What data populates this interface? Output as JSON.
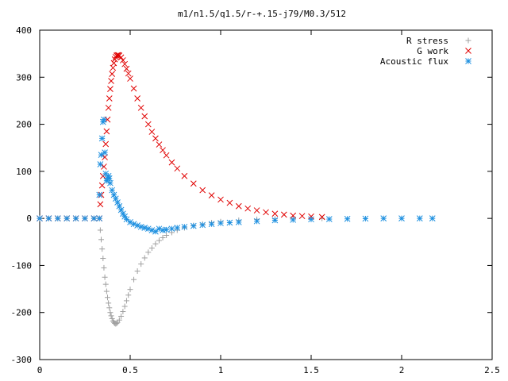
{
  "chart_data": {
    "type": "scatter",
    "title": "m1/n1.5/q1.5/r-+.15-j79/M0.3/512",
    "xlabel": "",
    "ylabel": "",
    "xlim": [
      0,
      2.5
    ],
    "ylim": [
      -300,
      400
    ],
    "xticks": [
      "0",
      "0.5",
      "1",
      "1.5",
      "2",
      "2.5"
    ],
    "yticks": [
      "400",
      "300",
      "200",
      "100",
      "0",
      "-100",
      "-200",
      "-300"
    ],
    "grid": false,
    "legend_position": "top-right",
    "series": [
      {
        "name": "R stress",
        "marker": "plus",
        "color": "#a0a0a0",
        "points": [
          [
            0.0,
            0
          ],
          [
            0.05,
            0
          ],
          [
            0.1,
            0
          ],
          [
            0.15,
            0
          ],
          [
            0.2,
            0
          ],
          [
            0.25,
            0
          ],
          [
            0.3,
            0
          ],
          [
            0.33,
            0
          ],
          [
            0.335,
            -25
          ],
          [
            0.34,
            -45
          ],
          [
            0.345,
            -65
          ],
          [
            0.35,
            -85
          ],
          [
            0.355,
            -105
          ],
          [
            0.36,
            -125
          ],
          [
            0.365,
            -140
          ],
          [
            0.37,
            -155
          ],
          [
            0.375,
            -168
          ],
          [
            0.38,
            -180
          ],
          [
            0.385,
            -190
          ],
          [
            0.39,
            -200
          ],
          [
            0.395,
            -207
          ],
          [
            0.4,
            -213
          ],
          [
            0.405,
            -218
          ],
          [
            0.41,
            -221
          ],
          [
            0.415,
            -223
          ],
          [
            0.42,
            -224
          ],
          [
            0.425,
            -223
          ],
          [
            0.43,
            -221
          ],
          [
            0.44,
            -216
          ],
          [
            0.45,
            -208
          ],
          [
            0.46,
            -198
          ],
          [
            0.47,
            -187
          ],
          [
            0.48,
            -175
          ],
          [
            0.49,
            -163
          ],
          [
            0.5,
            -151
          ],
          [
            0.52,
            -130
          ],
          [
            0.54,
            -112
          ],
          [
            0.56,
            -97
          ],
          [
            0.58,
            -84
          ],
          [
            0.6,
            -72
          ],
          [
            0.62,
            -63
          ],
          [
            0.64,
            -54
          ],
          [
            0.66,
            -47
          ],
          [
            0.68,
            -41
          ],
          [
            0.7,
            -36
          ],
          [
            0.73,
            -30
          ],
          [
            0.76,
            -25
          ],
          [
            0.8,
            -20
          ],
          [
            0.85,
            -15
          ],
          [
            0.9,
            -12
          ],
          [
            0.95,
            -9
          ],
          [
            1.0,
            -7
          ],
          [
            1.1,
            -4
          ],
          [
            1.2,
            -2
          ],
          [
            1.3,
            -1
          ],
          [
            1.4,
            -0.5
          ],
          [
            1.5,
            -0.2
          ],
          [
            1.56,
            0
          ]
        ]
      },
      {
        "name": "G work",
        "marker": "cross",
        "color": "#e00000",
        "points": [
          [
            0.0,
            0
          ],
          [
            0.05,
            0
          ],
          [
            0.1,
            0
          ],
          [
            0.15,
            0
          ],
          [
            0.2,
            0
          ],
          [
            0.25,
            0
          ],
          [
            0.3,
            0
          ],
          [
            0.33,
            0
          ],
          [
            0.335,
            30
          ],
          [
            0.34,
            50
          ],
          [
            0.345,
            70
          ],
          [
            0.35,
            90
          ],
          [
            0.355,
            110
          ],
          [
            0.36,
            130
          ],
          [
            0.365,
            158
          ],
          [
            0.37,
            185
          ],
          [
            0.375,
            210
          ],
          [
            0.38,
            235
          ],
          [
            0.385,
            255
          ],
          [
            0.39,
            275
          ],
          [
            0.395,
            292
          ],
          [
            0.4,
            307
          ],
          [
            0.405,
            320
          ],
          [
            0.41,
            330
          ],
          [
            0.415,
            338
          ],
          [
            0.42,
            343
          ],
          [
            0.425,
            346
          ],
          [
            0.43,
            347
          ],
          [
            0.435,
            347
          ],
          [
            0.44,
            346
          ],
          [
            0.45,
            342
          ],
          [
            0.46,
            336
          ],
          [
            0.47,
            328
          ],
          [
            0.48,
            318
          ],
          [
            0.49,
            308
          ],
          [
            0.5,
            297
          ],
          [
            0.52,
            276
          ],
          [
            0.54,
            255
          ],
          [
            0.56,
            235
          ],
          [
            0.58,
            217
          ],
          [
            0.6,
            200
          ],
          [
            0.62,
            184
          ],
          [
            0.64,
            170
          ],
          [
            0.66,
            157
          ],
          [
            0.68,
            145
          ],
          [
            0.7,
            134
          ],
          [
            0.73,
            119
          ],
          [
            0.76,
            106
          ],
          [
            0.8,
            90
          ],
          [
            0.85,
            74
          ],
          [
            0.9,
            60
          ],
          [
            0.95,
            49
          ],
          [
            1.0,
            40
          ],
          [
            1.05,
            33
          ],
          [
            1.1,
            26
          ],
          [
            1.15,
            21
          ],
          [
            1.2,
            17
          ],
          [
            1.25,
            13
          ],
          [
            1.3,
            10
          ],
          [
            1.35,
            8
          ],
          [
            1.4,
            6
          ],
          [
            1.45,
            5
          ],
          [
            1.5,
            4
          ],
          [
            1.56,
            3
          ]
        ]
      },
      {
        "name": "Acoustic flux",
        "marker": "asterisk",
        "color": "#1e90e0",
        "points": [
          [
            0.0,
            0
          ],
          [
            0.05,
            0
          ],
          [
            0.1,
            0
          ],
          [
            0.15,
            0
          ],
          [
            0.2,
            0
          ],
          [
            0.25,
            0
          ],
          [
            0.3,
            0
          ],
          [
            0.33,
            0
          ],
          [
            0.33,
            50
          ],
          [
            0.335,
            115
          ],
          [
            0.34,
            135
          ],
          [
            0.345,
            170
          ],
          [
            0.35,
            205
          ],
          [
            0.355,
            210
          ],
          [
            0.36,
            140
          ],
          [
            0.365,
            95
          ],
          [
            0.37,
            80
          ],
          [
            0.375,
            85
          ],
          [
            0.38,
            90
          ],
          [
            0.385,
            85
          ],
          [
            0.39,
            75
          ],
          [
            0.4,
            60
          ],
          [
            0.41,
            50
          ],
          [
            0.42,
            42
          ],
          [
            0.43,
            34
          ],
          [
            0.44,
            26
          ],
          [
            0.45,
            18
          ],
          [
            0.46,
            10
          ],
          [
            0.47,
            4
          ],
          [
            0.48,
            -2
          ],
          [
            0.5,
            -8
          ],
          [
            0.52,
            -12
          ],
          [
            0.54,
            -15
          ],
          [
            0.56,
            -18
          ],
          [
            0.58,
            -20
          ],
          [
            0.6,
            -22
          ],
          [
            0.62,
            -25
          ],
          [
            0.64,
            -28
          ],
          [
            0.66,
            -22
          ],
          [
            0.68,
            -25
          ],
          [
            0.7,
            -24
          ],
          [
            0.73,
            -22
          ],
          [
            0.76,
            -20
          ],
          [
            0.8,
            -18
          ],
          [
            0.85,
            -16
          ],
          [
            0.9,
            -14
          ],
          [
            0.95,
            -12
          ],
          [
            1.0,
            -10
          ],
          [
            1.05,
            -9
          ],
          [
            1.1,
            -8
          ],
          [
            1.2,
            -6
          ],
          [
            1.3,
            -4
          ],
          [
            1.4,
            -3
          ],
          [
            1.5,
            -2
          ],
          [
            1.6,
            -1.5
          ],
          [
            1.7,
            -1
          ],
          [
            1.8,
            -0.5
          ],
          [
            1.9,
            0
          ],
          [
            2.0,
            0
          ],
          [
            2.1,
            0
          ],
          [
            2.17,
            0
          ]
        ]
      }
    ]
  }
}
